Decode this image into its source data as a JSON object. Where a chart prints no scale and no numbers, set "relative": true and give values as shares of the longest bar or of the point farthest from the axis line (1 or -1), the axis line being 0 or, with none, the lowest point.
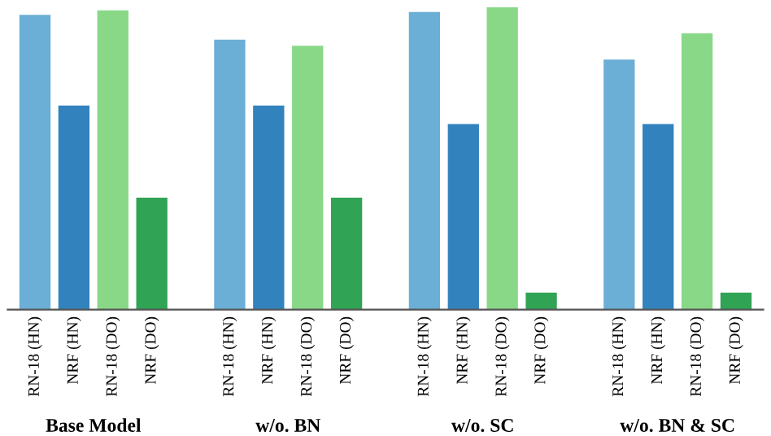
{
  "chart_data": {
    "type": "bar",
    "relative": true,
    "categories": [
      "Base Model",
      "w/o. BN",
      "w/o. SC",
      "w/o. BN & SC"
    ],
    "series": [
      {
        "name": "RN-18 (HN)",
        "color": "#6baed6",
        "values": [
          0.975,
          0.893,
          0.985,
          0.827
        ]
      },
      {
        "name": "NRF (HN)",
        "color": "#3182bd",
        "values": [
          0.675,
          0.675,
          0.614,
          0.614
        ]
      },
      {
        "name": "RN-18 (DO)",
        "color": "#88d888",
        "values": [
          0.99,
          0.873,
          1.0,
          0.914
        ]
      },
      {
        "name": "NRF (DO)",
        "color": "#31a354",
        "values": [
          0.37,
          0.37,
          0.056,
          0.056
        ]
      }
    ],
    "grid": false,
    "legend": false
  }
}
